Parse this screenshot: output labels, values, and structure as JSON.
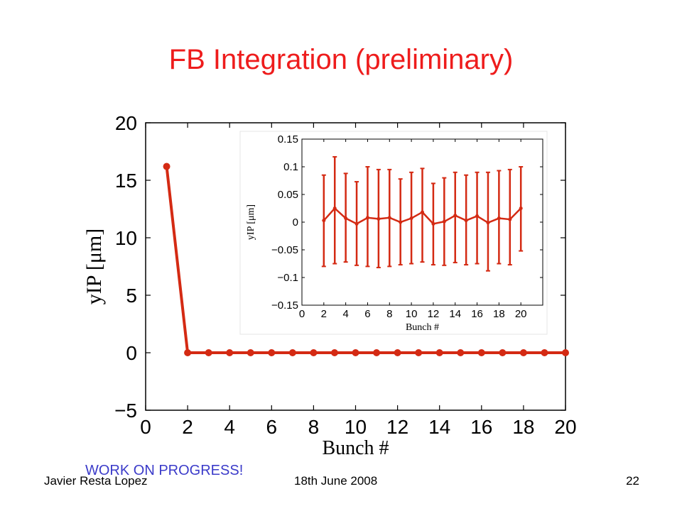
{
  "title": "FB Integration (preliminary)",
  "footer": {
    "author": "Javier Resta Lopez",
    "date": "18th June 2008",
    "page": "22"
  },
  "note": "WORK ON PROGRESS!",
  "colors": {
    "title": "#ee1c1c",
    "series": "#d42a13",
    "note": "#3b3bc9"
  },
  "chart_data": [
    {
      "type": "line",
      "xlabel": "Bunch #",
      "ylabel": "yIP [μm]",
      "xlim": [
        0,
        20
      ],
      "ylim": [
        -5,
        20
      ],
      "xticks": [
        0,
        2,
        4,
        6,
        8,
        10,
        12,
        14,
        16,
        18,
        20
      ],
      "yticks": [
        -5,
        0,
        5,
        10,
        15,
        20
      ],
      "x": [
        1,
        2,
        3,
        4,
        5,
        6,
        7,
        8,
        9,
        10,
        11,
        12,
        13,
        14,
        15,
        16,
        17,
        18,
        19,
        20
      ],
      "y": [
        16.2,
        0,
        0,
        0,
        0,
        0,
        0,
        0,
        0,
        0,
        0,
        0,
        0,
        0,
        0,
        0,
        0,
        0,
        0,
        0
      ],
      "grid": false
    },
    {
      "type": "line",
      "inset": true,
      "xlabel": "Bunch #",
      "ylabel": "yIP [μm]",
      "xlim": [
        0,
        22
      ],
      "ylim": [
        -0.15,
        0.15
      ],
      "xticks": [
        0,
        2,
        4,
        6,
        8,
        10,
        12,
        14,
        16,
        18,
        20
      ],
      "yticks": [
        -0.15,
        -0.1,
        -0.05,
        0,
        0.05,
        0.1,
        0.15
      ],
      "ytick_labels": [
        "−0.15",
        "−0.1",
        "−0.05",
        "0",
        "0.05",
        "0.1",
        "0.15"
      ],
      "x": [
        2,
        3,
        4,
        5,
        6,
        7,
        8,
        9,
        10,
        11,
        12,
        13,
        14,
        15,
        16,
        17,
        18,
        19,
        20
      ],
      "y": [
        0.003,
        0.025,
        0.007,
        -0.003,
        0.008,
        0.006,
        0.008,
        0.0,
        0.007,
        0.018,
        -0.003,
        0.001,
        0.012,
        0.003,
        0.011,
        -0.001,
        0.007,
        0.005,
        0.025
      ],
      "err_low": [
        -0.08,
        -0.075,
        -0.072,
        -0.078,
        -0.08,
        -0.082,
        -0.08,
        -0.077,
        -0.075,
        -0.072,
        -0.077,
        -0.078,
        -0.073,
        -0.077,
        -0.075,
        -0.088,
        -0.075,
        -0.077,
        -0.052
      ],
      "err_high": [
        0.085,
        0.118,
        0.088,
        0.073,
        0.1,
        0.095,
        0.095,
        0.078,
        0.09,
        0.097,
        0.07,
        0.08,
        0.09,
        0.085,
        0.09,
        0.09,
        0.093,
        0.095,
        0.1
      ],
      "grid": false
    }
  ]
}
